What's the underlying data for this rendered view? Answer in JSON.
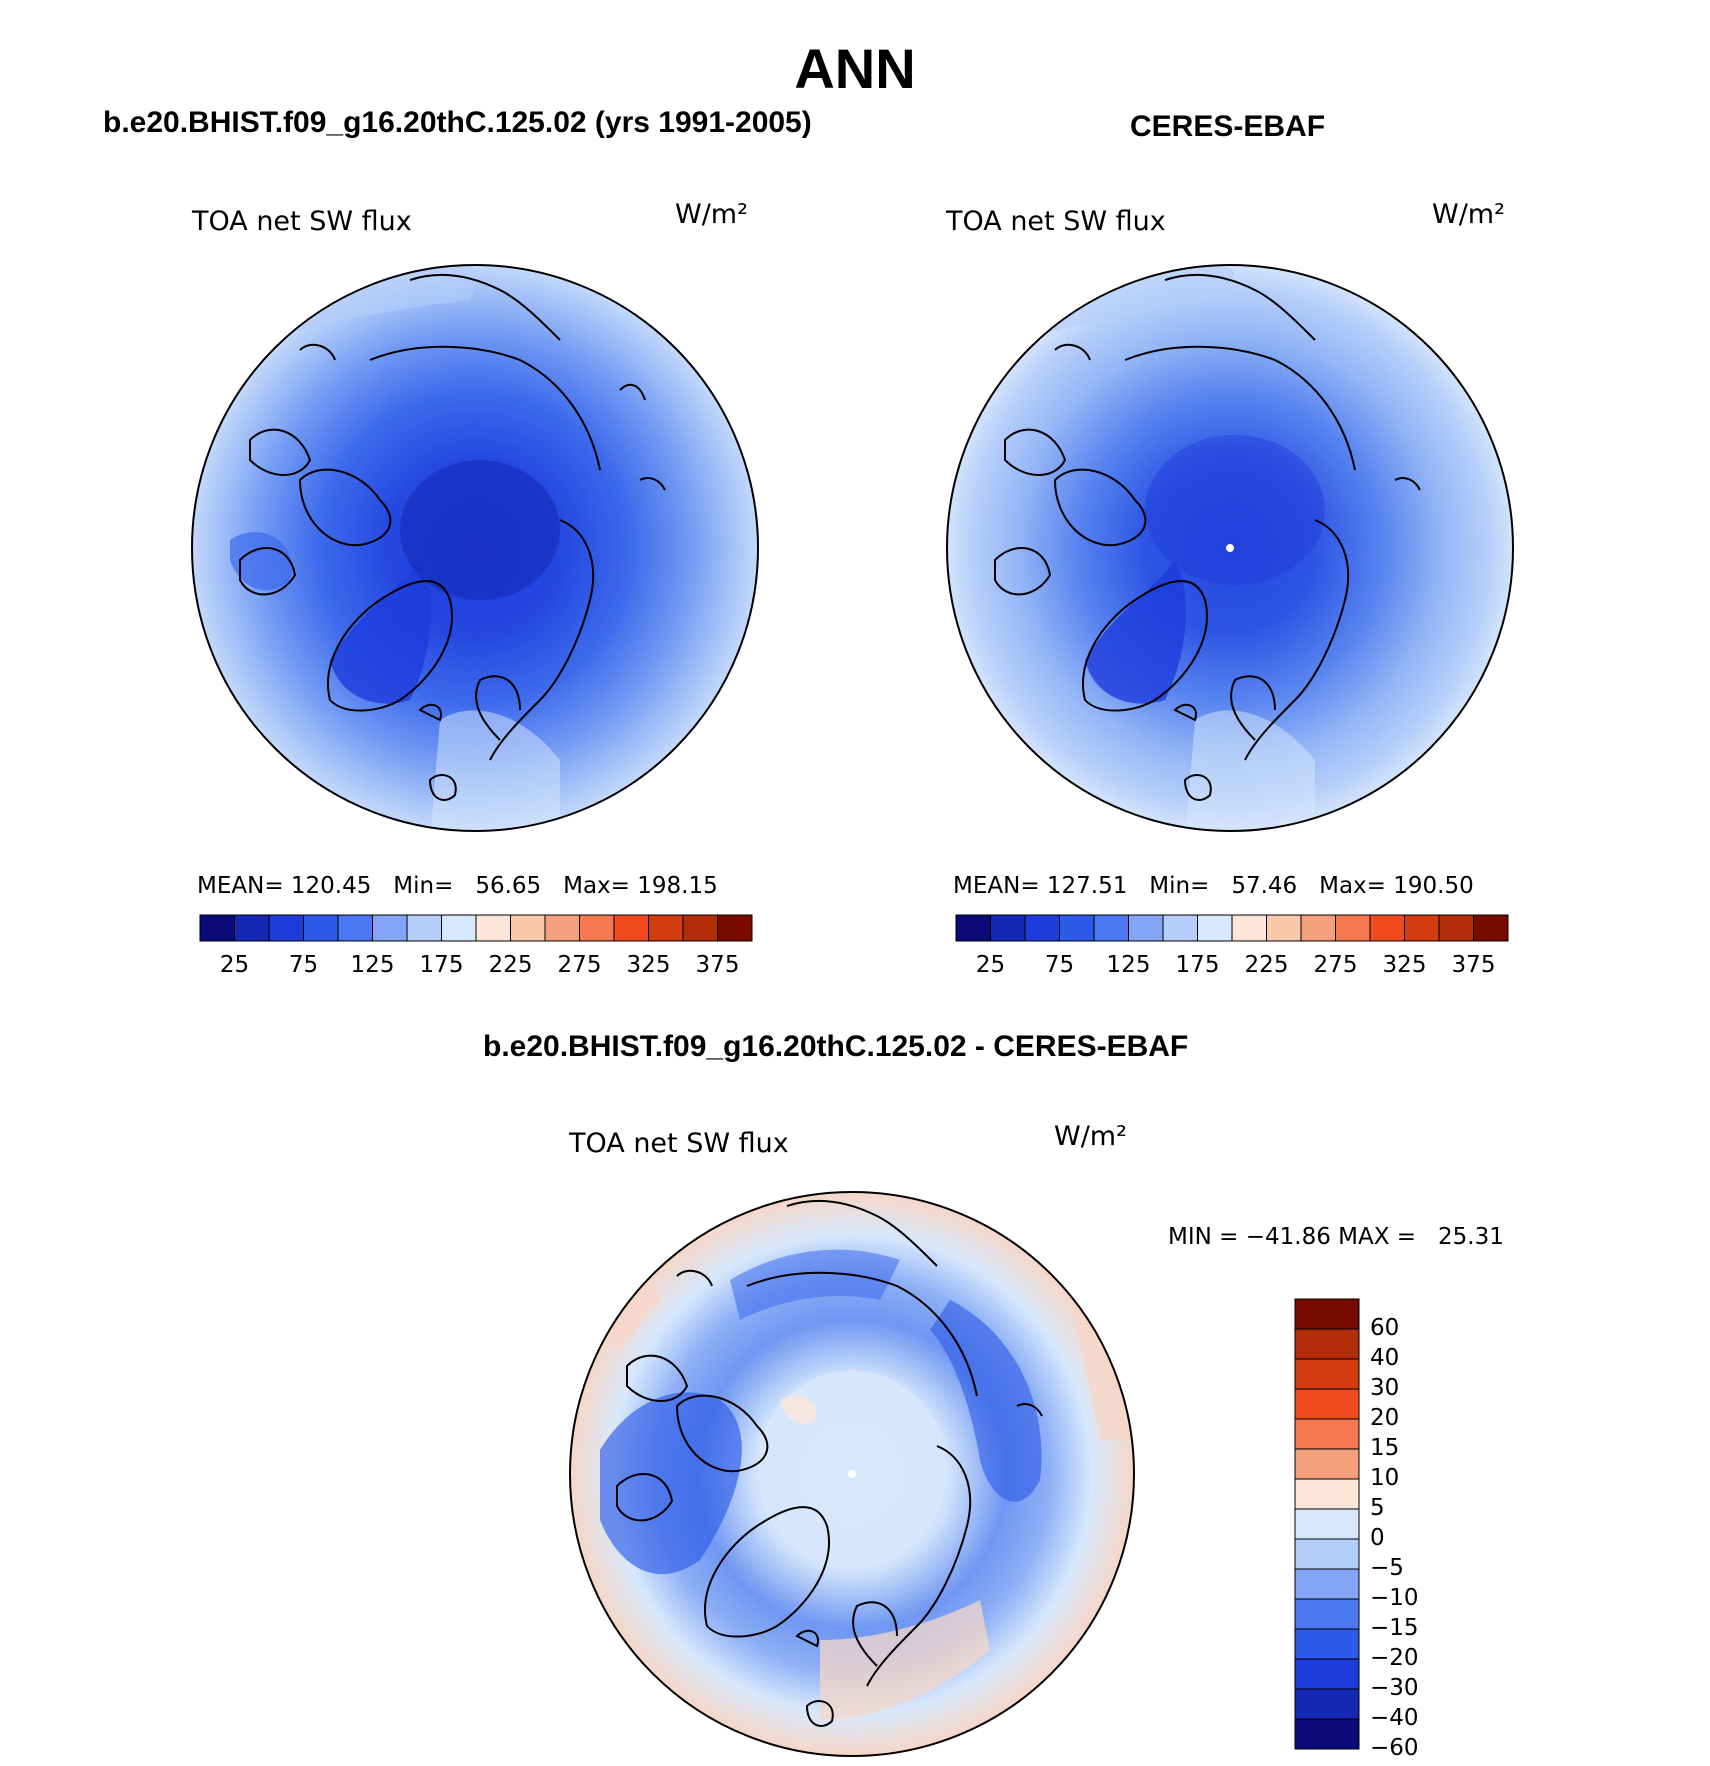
{
  "figure": {
    "season": "ANN",
    "variable_label": "TOA net SW flux",
    "units_label": "W/m²"
  },
  "panels": {
    "model": {
      "title": "b.e20.BHIST.f09_g16.20thC.125.02 (yrs 1991-2005)",
      "stats": "MEAN= 120.45   Min=   56.65   Max= 198.15",
      "mean": 120.45,
      "min": 56.65,
      "max": 198.15
    },
    "obs": {
      "title": "CERES-EBAF",
      "stats": "MEAN= 127.51   Min=   57.46   Max= 190.50",
      "mean": 127.51,
      "min": 57.46,
      "max": 190.5
    },
    "diff": {
      "title": "b.e20.BHIST.f09_g16.20thC.125.02 - CERES-EBAF",
      "stats": "MIN = −41.86 MAX =   25.31",
      "min": -41.86,
      "max": 25.31
    }
  },
  "colorbar_main": {
    "colors": [
      "#0a0a78",
      "#1428b4",
      "#1e3cdc",
      "#2d5ae6",
      "#4b78f0",
      "#82a5f5",
      "#b4cdfa",
      "#d7e8fc",
      "#fde6d7",
      "#fbc8aa",
      "#f5a07d",
      "#f57850",
      "#f04b1e",
      "#d23c0f",
      "#b42d0a",
      "#780a00"
    ],
    "tick_labels": [
      "25",
      "75",
      "125",
      "175",
      "225",
      "275",
      "325",
      "375"
    ]
  },
  "colorbar_diff": {
    "colors": [
      "#780a00",
      "#b42d0a",
      "#d23c0f",
      "#f04b1e",
      "#f57850",
      "#f5a07d",
      "#fde6d7",
      "#d7e8fc",
      "#b4cdfa",
      "#82a5f5",
      "#4b78f0",
      "#2d5ae6",
      "#1e3cdc",
      "#1428b4",
      "#0a0a78"
    ],
    "tick_labels": [
      "60",
      "40",
      "30",
      "20",
      "15",
      "10",
      "5",
      "0",
      "−5",
      "−10",
      "−15",
      "−20",
      "−30",
      "−40",
      "−60"
    ]
  }
}
